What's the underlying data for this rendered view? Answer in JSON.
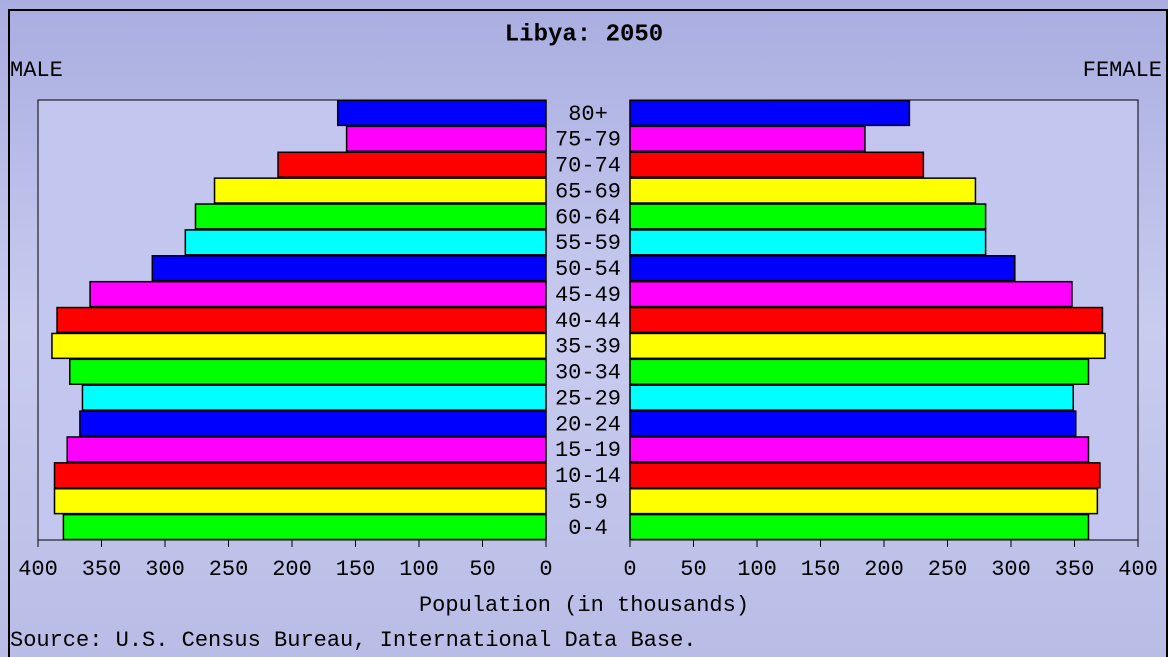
{
  "chart_data": {
    "type": "pyramid",
    "title": "Libya: 2050",
    "categories": [
      "80+",
      "75-79",
      "70-74",
      "65-69",
      "60-64",
      "55-59",
      "50-54",
      "45-49",
      "40-44",
      "35-39",
      "30-34",
      "25-29",
      "20-24",
      "15-19",
      "10-14",
      "5-9",
      "0-4"
    ],
    "colors": [
      "#0000ff",
      "#ff00ff",
      "#ff0000",
      "#ffff00",
      "#00ff00",
      "#00ffff",
      "#0000ff",
      "#ff00ff",
      "#ff0000",
      "#ffff00",
      "#00ff00",
      "#00ffff",
      "#0000ff",
      "#ff00ff",
      "#ff0000",
      "#ffff00",
      "#00ff00"
    ],
    "series": [
      {
        "name": "MALE",
        "values": [
          164,
          157,
          211,
          261,
          276,
          284,
          310,
          359,
          385,
          389,
          375,
          365,
          367,
          377,
          387,
          387,
          380
        ]
      },
      {
        "name": "FEMALE",
        "values": [
          220,
          185,
          231,
          272,
          280,
          280,
          303,
          348,
          372,
          374,
          361,
          349,
          351,
          361,
          370,
          368,
          361
        ]
      }
    ],
    "xlim": [
      0,
      400
    ],
    "xticks": [
      0,
      50,
      100,
      150,
      200,
      250,
      300,
      350,
      400
    ],
    "xlabel": "Population (in thousands)",
    "source": "Source: U.S. Census Bureau, International Data Base."
  }
}
